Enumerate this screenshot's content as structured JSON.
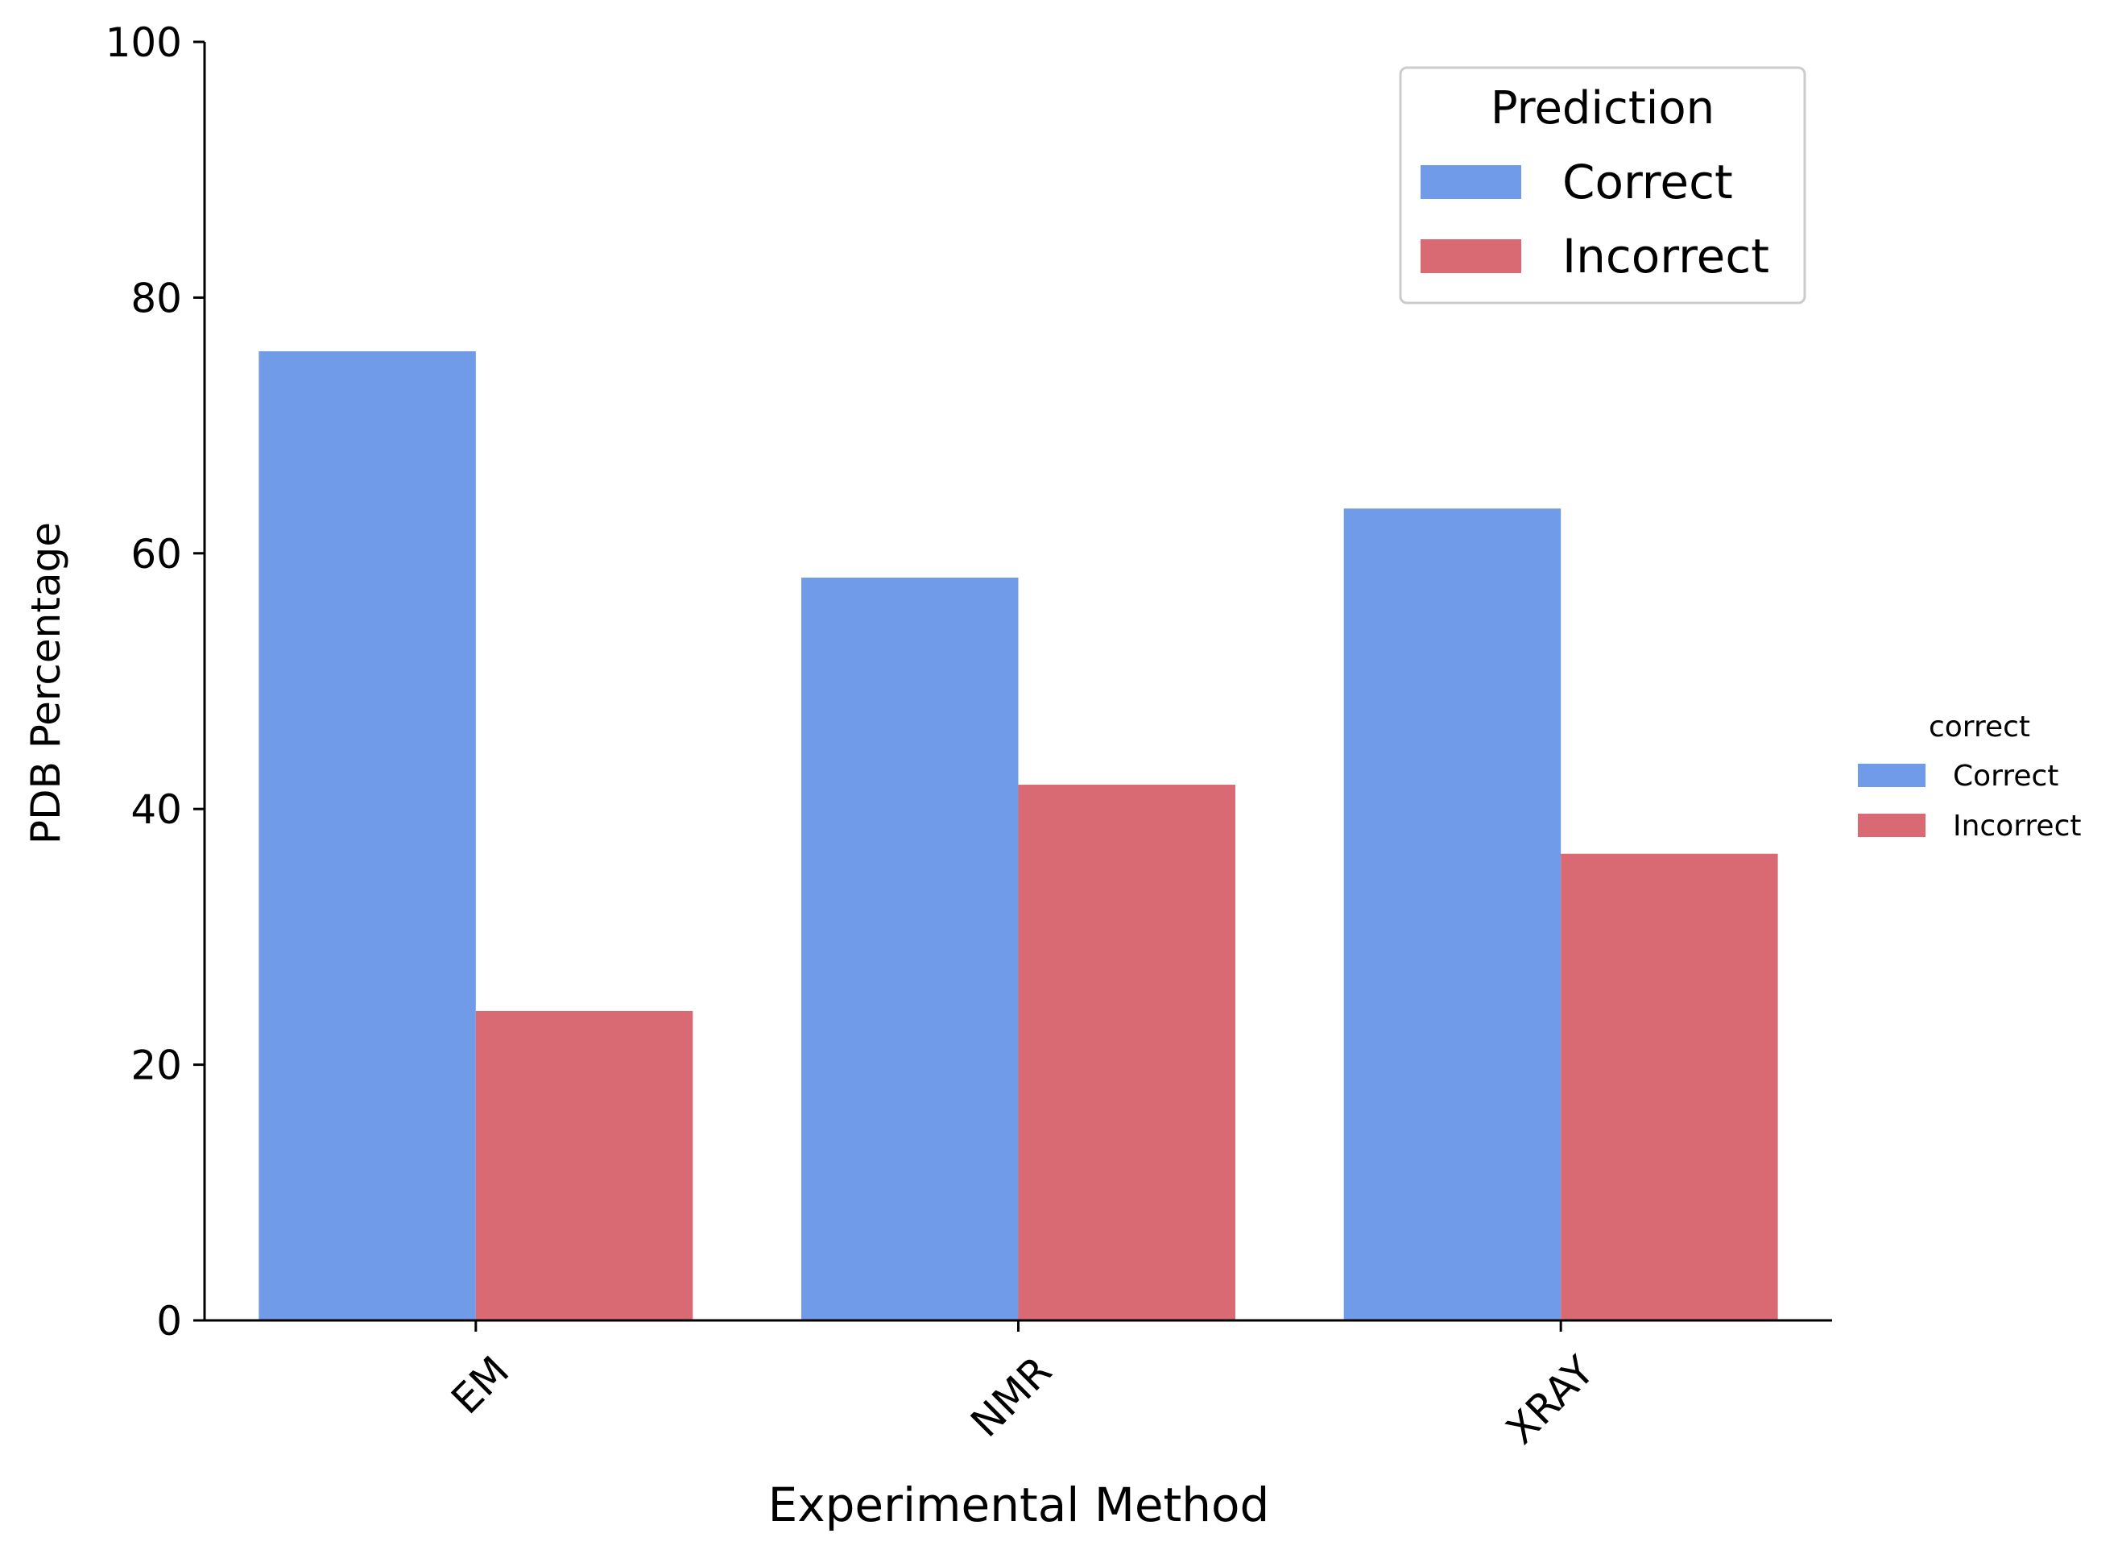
{
  "chart_data": {
    "type": "bar",
    "title": "",
    "xlabel": "Experimental Method",
    "ylabel": "PDB Percentage",
    "categories": [
      "EM",
      "NMR",
      "XRAY"
    ],
    "ylim": [
      0,
      100
    ],
    "yticks": [
      0,
      20,
      40,
      60,
      80,
      100
    ],
    "grid": false,
    "series": [
      {
        "name": "Correct",
        "color": "#6f9be9",
        "values": [
          75.8,
          58.1,
          63.5
        ]
      },
      {
        "name": "Incorrect",
        "color": "#d96a74",
        "values": [
          24.2,
          41.9,
          36.5
        ]
      }
    ],
    "legend": {
      "placement": "top-right",
      "title": "Prediction",
      "entries": [
        "Correct",
        "Incorrect"
      ]
    },
    "outside_legend": {
      "placement": "right",
      "title": "correct",
      "entries": [
        "Correct",
        "Incorrect"
      ]
    }
  }
}
